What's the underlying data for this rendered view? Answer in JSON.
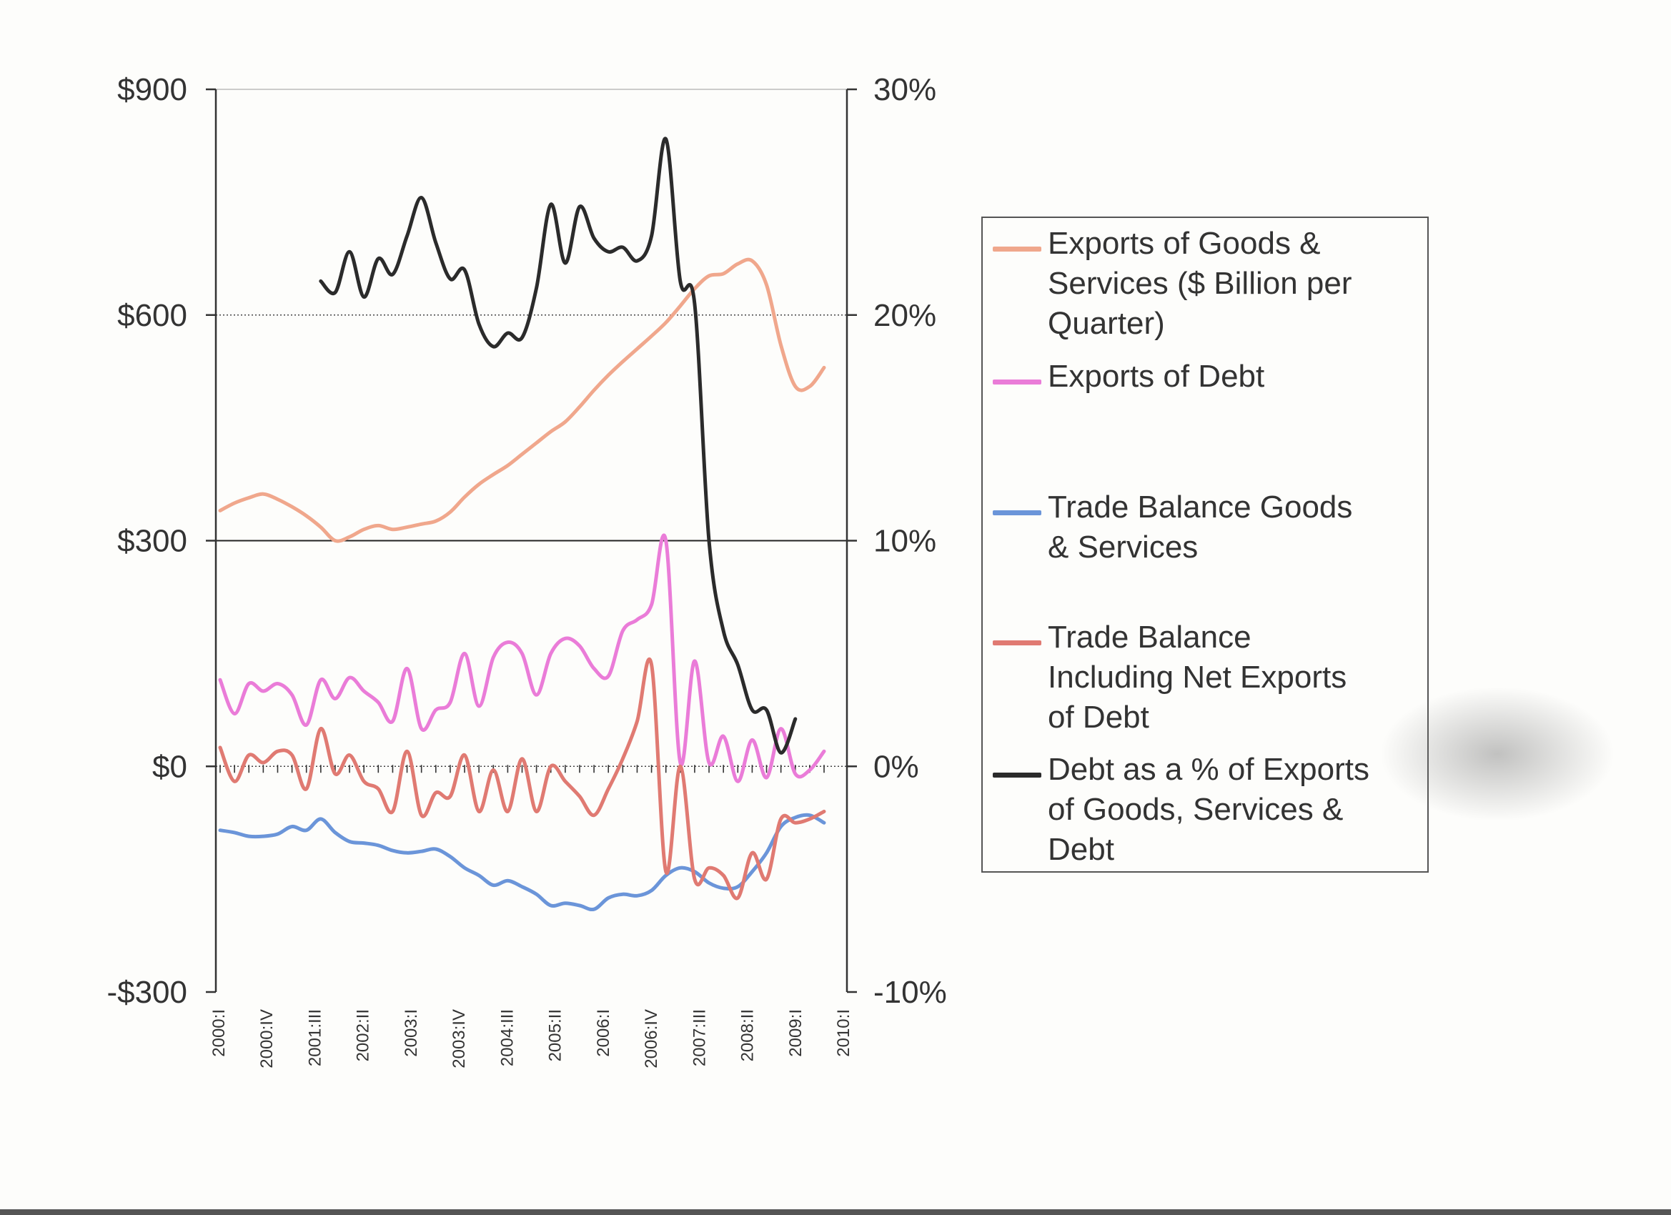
{
  "chart_data": {
    "type": "line",
    "title": "",
    "xlabel": "",
    "ylabel": "",
    "ylim": [
      -300,
      900
    ],
    "y2lim": [
      -10,
      30
    ],
    "y_ticks": [
      {
        "value": 900,
        "label": "$900"
      },
      {
        "value": 600,
        "label": "$600"
      },
      {
        "value": 300,
        "label": "$300"
      },
      {
        "value": 0,
        "label": "$0"
      },
      {
        "value": -300,
        "label": "-$300"
      }
    ],
    "y2_ticks": [
      {
        "value": 30,
        "label": "30%"
      },
      {
        "value": 20,
        "label": "20%"
      },
      {
        "value": 10,
        "label": "10%"
      },
      {
        "value": 0,
        "label": "0%"
      },
      {
        "value": -10,
        "label": "-10%"
      }
    ],
    "x_tick_labels": [
      "2000:I",
      "2000:IV",
      "2001:III",
      "2002:II",
      "2003:I",
      "2003:IV",
      "2004:III",
      "2005:II",
      "2006:I",
      "2006:IV",
      "2007:III",
      "2008:II",
      "2009:I",
      "2010:I"
    ],
    "legend_position": "right",
    "series": [
      {
        "name": "Exports of Goods & Services ($ Billion per Quarter)",
        "axis": "left",
        "color": "#f0a78c",
        "values": [
          340,
          350,
          357,
          362,
          355,
          345,
          333,
          318,
          300,
          305,
          315,
          320,
          315,
          318,
          322,
          326,
          338,
          358,
          375,
          388,
          400,
          415,
          430,
          445,
          458,
          478,
          500,
          520,
          538,
          555,
          572,
          590,
          612,
          635,
          652,
          655,
          668,
          672,
          640,
          560,
          505,
          505,
          530
        ]
      },
      {
        "name": "Exports of Debt",
        "axis": "left",
        "color": "#ea7cd8",
        "values": [
          115,
          70,
          110,
          100,
          110,
          95,
          55,
          115,
          90,
          118,
          100,
          85,
          60,
          130,
          50,
          75,
          85,
          150,
          80,
          145,
          165,
          150,
          95,
          150,
          170,
          160,
          130,
          120,
          180,
          195,
          215,
          300,
          5,
          140,
          5,
          40,
          -20,
          35,
          -15,
          50,
          -10,
          -5,
          20
        ]
      },
      {
        "name": "Trade Balance Goods & Services",
        "axis": "left",
        "color": "#6b95d9",
        "values": [
          -85,
          -88,
          -93,
          -93,
          -90,
          -80,
          -85,
          -70,
          -88,
          -100,
          -102,
          -105,
          -112,
          -115,
          -113,
          -110,
          -120,
          -135,
          -145,
          -158,
          -152,
          -160,
          -170,
          -185,
          -182,
          -185,
          -190,
          -175,
          -170,
          -172,
          -165,
          -145,
          -135,
          -140,
          -155,
          -162,
          -160,
          -140,
          -115,
          -80,
          -68,
          -65,
          -75
        ]
      },
      {
        "name": "Trade Balance Including Net Exports of Debt",
        "axis": "left",
        "color": "#e07a72",
        "values": [
          25,
          -20,
          15,
          5,
          20,
          15,
          -30,
          50,
          -10,
          15,
          -20,
          -30,
          -60,
          20,
          -65,
          -35,
          -40,
          15,
          -60,
          -5,
          -60,
          10,
          -60,
          0,
          -20,
          -40,
          -65,
          -30,
          10,
          60,
          135,
          -140,
          0,
          -150,
          -135,
          -145,
          -175,
          -115,
          -150,
          -70,
          -75,
          -70,
          -60
        ]
      },
      {
        "name": "Debt as a % of Exports of Goods, Services & Debt",
        "axis": "right",
        "color": "#2b2b2b",
        "values": [
          null,
          null,
          null,
          null,
          null,
          null,
          null,
          21.5,
          21.0,
          22.8,
          20.8,
          22.5,
          21.8,
          23.5,
          25.2,
          23.2,
          21.6,
          22.0,
          19.6,
          18.6,
          19.2,
          19.0,
          21.2,
          24.9,
          22.3,
          24.8,
          23.4,
          22.8,
          23.0,
          22.4,
          23.5,
          27.8,
          21.5,
          20.5,
          10.0,
          6.0,
          4.5,
          2.5,
          2.5,
          0.6,
          2.1,
          null,
          null
        ]
      }
    ]
  },
  "legend": {
    "items": [
      {
        "label": "Exports of Goods &\nServices ($ Billion per\nQuarter)",
        "color": "#f0a78c"
      },
      {
        "label": "Exports of Debt",
        "color": "#ea7cd8"
      },
      {
        "label": "Trade Balance Goods\n& Services",
        "color": "#6b95d9"
      },
      {
        "label": "Trade Balance\nIncluding Net Exports\nof Debt",
        "color": "#e07a72"
      },
      {
        "label": "Debt as a % of Exports\nof Goods, Services &\nDebt",
        "color": "#2b2b2b"
      }
    ]
  }
}
